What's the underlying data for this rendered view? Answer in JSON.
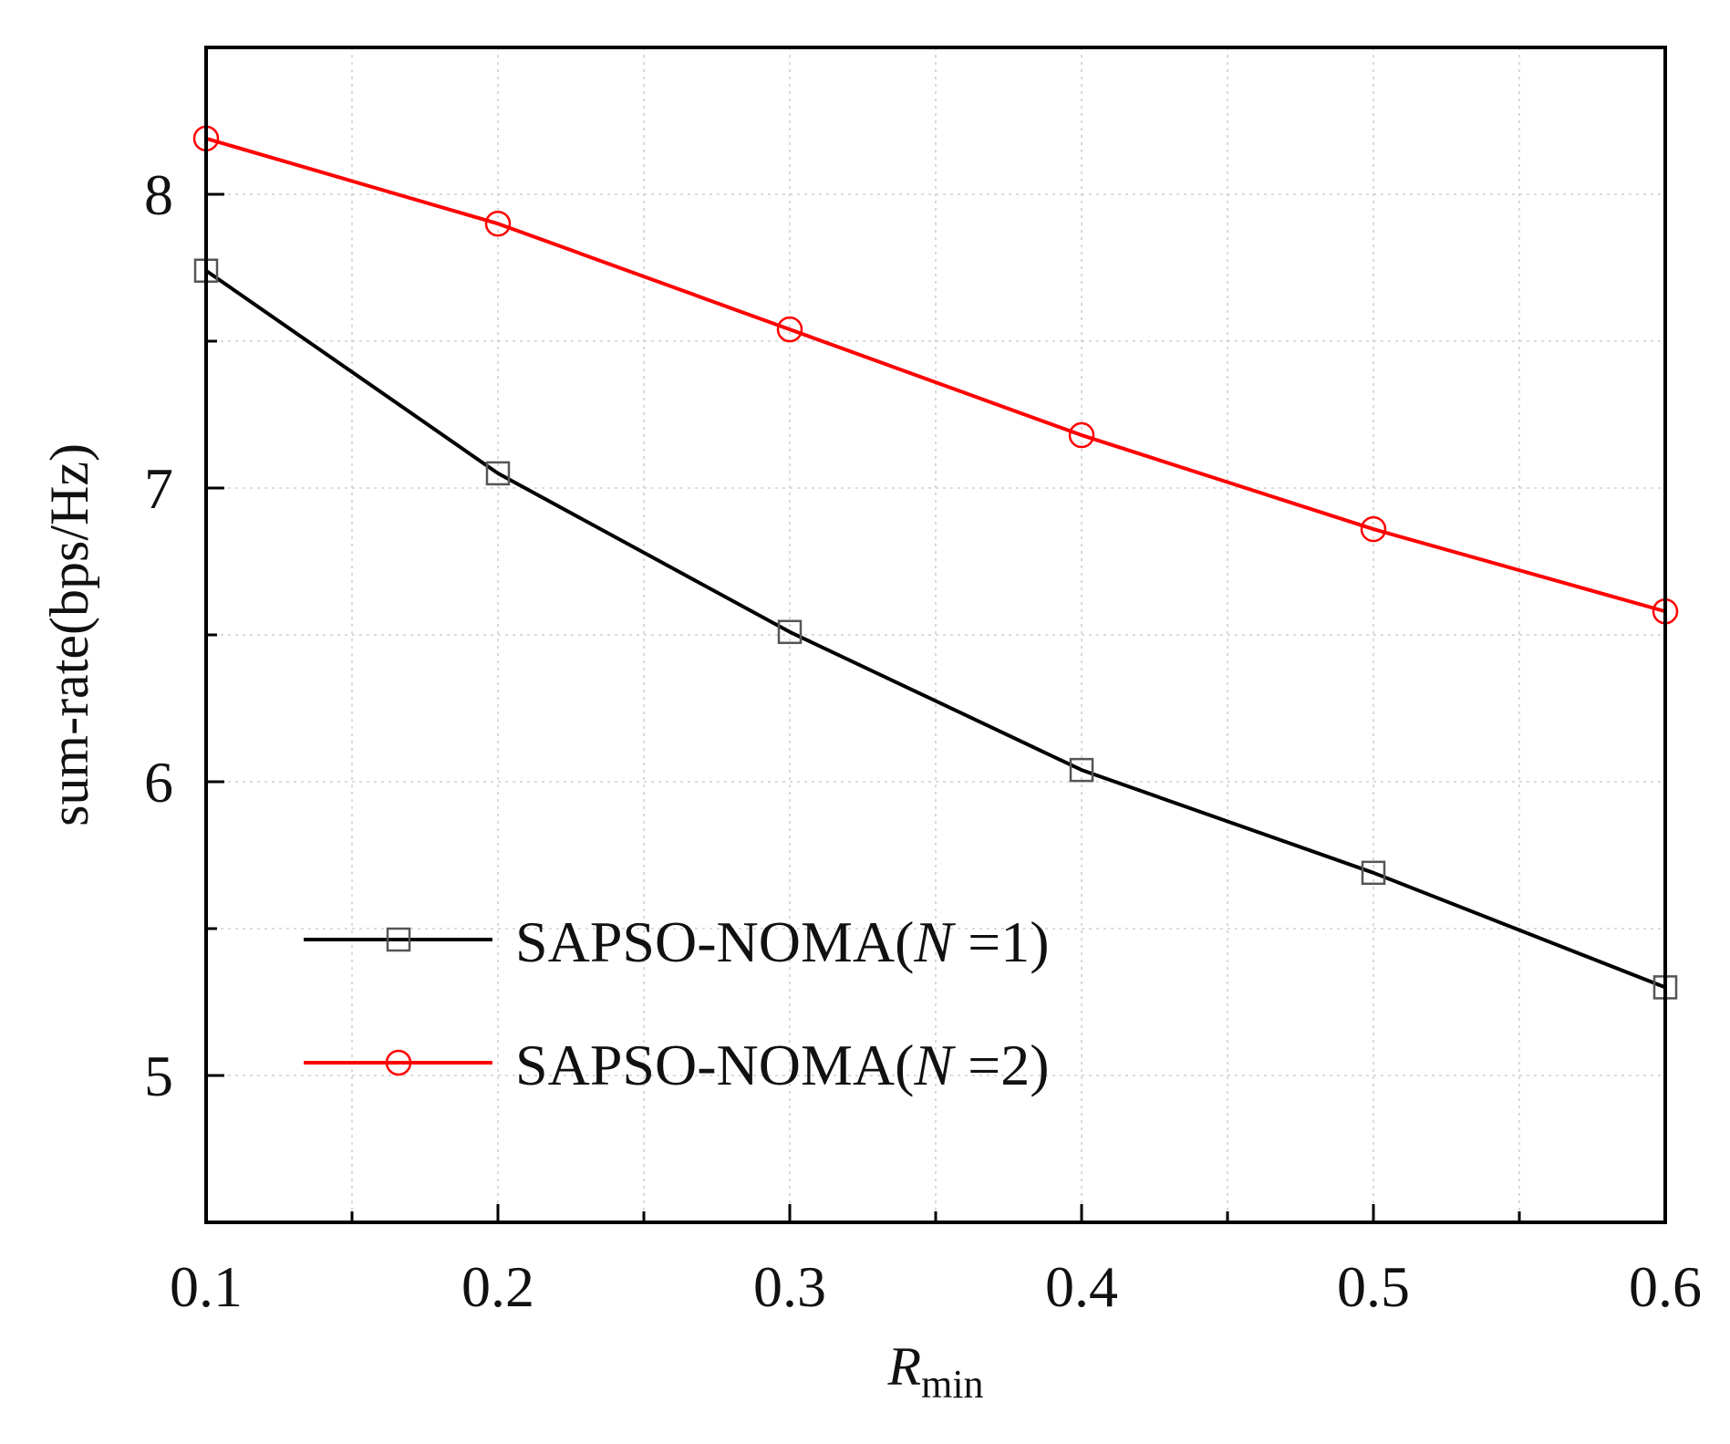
{
  "chart_data": {
    "type": "line",
    "title": "",
    "xlabel": {
      "symbol": "R",
      "subscript": "min"
    },
    "ylabel": "sum-rate(bps/Hz)",
    "xlim": [
      0.1,
      0.6
    ],
    "ylim": [
      4.5,
      8.5
    ],
    "x_ticks": [
      0.1,
      0.2,
      0.3,
      0.4,
      0.5,
      0.6
    ],
    "x_tick_labels": [
      "0.1",
      "0.2",
      "0.3",
      "0.4",
      "0.5",
      "0.6"
    ],
    "x_minor_ticks": [
      0.15,
      0.25,
      0.35,
      0.45,
      0.55
    ],
    "y_ticks": [
      5,
      6,
      7,
      8
    ],
    "y_tick_labels": [
      "5",
      "6",
      "7",
      "8"
    ],
    "y_minor_ticks": [
      4.5,
      5.5,
      6.5,
      7.5
    ],
    "grid": true,
    "legend_position": "bottom-left",
    "x": [
      0.1,
      0.2,
      0.3,
      0.4,
      0.5,
      0.6
    ],
    "series": [
      {
        "name": "SAPSO-NOMA(N =1)",
        "legend_parts": [
          "SAPSO-NOMA(",
          "N",
          " =1)"
        ],
        "values": [
          7.74,
          7.05,
          6.51,
          6.04,
          5.69,
          5.3
        ],
        "color": "#000000",
        "marker": "square"
      },
      {
        "name": "SAPSO-NOMA(N =2)",
        "legend_parts": [
          "SAPSO-NOMA(",
          "N",
          " =2)"
        ],
        "values": [
          8.19,
          7.9,
          7.54,
          7.18,
          6.86,
          6.58
        ],
        "color": "#ff0000",
        "marker": "circle"
      }
    ]
  }
}
